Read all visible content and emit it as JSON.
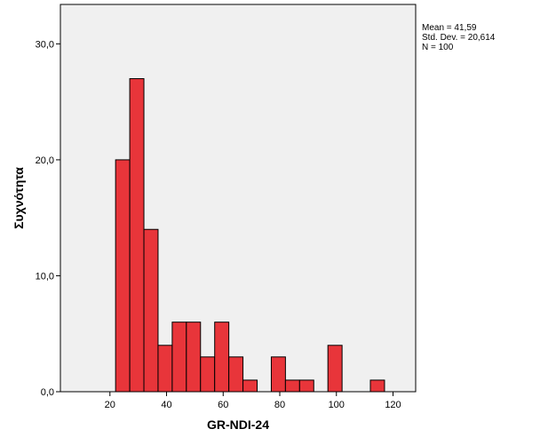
{
  "chart_data": {
    "type": "bar",
    "subtype": "histogram",
    "xlabel": "GR-NDI-24",
    "ylabel": "Συχνότητα",
    "bin_width": 5,
    "bins": [
      {
        "start": 22,
        "end": 27,
        "count": 20
      },
      {
        "start": 27,
        "end": 32,
        "count": 27
      },
      {
        "start": 32,
        "end": 37,
        "count": 14
      },
      {
        "start": 37,
        "end": 42,
        "count": 4
      },
      {
        "start": 42,
        "end": 47,
        "count": 6
      },
      {
        "start": 47,
        "end": 52,
        "count": 6
      },
      {
        "start": 52,
        "end": 57,
        "count": 3
      },
      {
        "start": 57,
        "end": 62,
        "count": 6
      },
      {
        "start": 62,
        "end": 67,
        "count": 3
      },
      {
        "start": 67,
        "end": 72,
        "count": 1
      },
      {
        "start": 72,
        "end": 77,
        "count": 0
      },
      {
        "start": 77,
        "end": 82,
        "count": 3
      },
      {
        "start": 82,
        "end": 87,
        "count": 1
      },
      {
        "start": 87,
        "end": 92,
        "count": 1
      },
      {
        "start": 92,
        "end": 97,
        "count": 0
      },
      {
        "start": 97,
        "end": 102,
        "count": 4
      },
      {
        "start": 102,
        "end": 107,
        "count": 0
      },
      {
        "start": 107,
        "end": 112,
        "count": 0
      },
      {
        "start": 112,
        "end": 117,
        "count": 1
      }
    ],
    "xlim": [
      2.5,
      128
    ],
    "ylim": [
      0,
      33.4
    ],
    "xticks": [
      20,
      40,
      60,
      80,
      100,
      120
    ],
    "xtick_labels": [
      "20",
      "40",
      "60",
      "80",
      "100",
      "120"
    ],
    "yticks": [
      0,
      10,
      20,
      30
    ],
    "ytick_labels": [
      "0,0",
      "10,0",
      "20,0",
      "30,0"
    ],
    "bar_color": "#e8353a",
    "bar_edge_color": "#000000",
    "plot_background": "#f0f0f0",
    "grid": false,
    "legend": "none"
  },
  "stats": {
    "mean": "Mean = 41,59",
    "std": "Std. Dev. = 20,614",
    "n": "N = 100"
  }
}
